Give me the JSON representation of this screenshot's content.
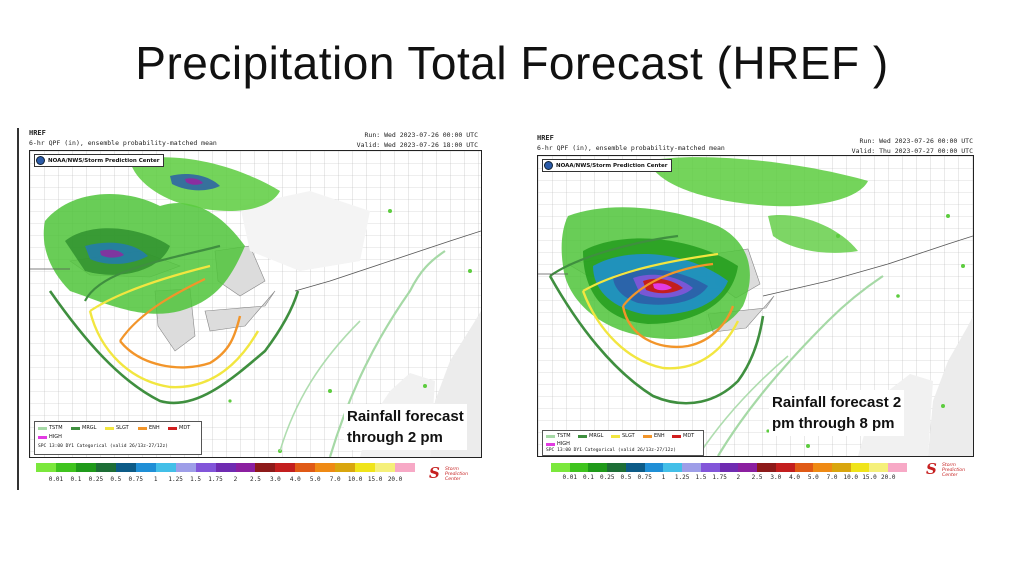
{
  "title": "Precipitation Total Forecast (HREF )",
  "panels": [
    {
      "model": "HREF",
      "product": "6-hr QPF (in), ensemble probability-matched mean",
      "run": "Run: Wed 2023-07-26 00:00 UTC",
      "valid": "Valid: Wed 2023-07-26 18:00 UTC",
      "agency": "NOAA/NWS/Storm Prediction Center",
      "annotation_line1": "Rainfall forecast",
      "annotation_line2": "through 2 pm",
      "outlook_caption": "SPC 13:00 DY1 Categorical (valid 26/13z-27/12z)"
    },
    {
      "model": "HREF",
      "product": "6-hr QPF (in), ensemble probability-matched mean",
      "run": "Run: Wed 2023-07-26 00:00 UTC",
      "valid": "Valid: Thu 2023-07-27 00:00 UTC",
      "agency": "NOAA/NWS/Storm Prediction Center",
      "annotation_line1": "Rainfall forecast 2",
      "annotation_line2": "pm through 8 pm",
      "outlook_caption": "SPC 13:00 DY1 Categorical (valid 26/13z-27/12z)"
    }
  ],
  "outlook_legend": [
    {
      "label": "TSTM",
      "color": "#a6d9a6"
    },
    {
      "label": "MRGL",
      "color": "#3f8f3f"
    },
    {
      "label": "SLGT",
      "color": "#f2e640"
    },
    {
      "label": "ENH",
      "color": "#f2952a"
    },
    {
      "label": "MDT",
      "color": "#d11f1f"
    },
    {
      "label": "HIGH",
      "color": "#e23be2"
    }
  ],
  "colorbar": {
    "labels": [
      "0.01",
      "0.1",
      "0.25",
      "0.5",
      "0.75",
      "1",
      "1.25",
      "1.5",
      "1.75",
      "2",
      "2.5",
      "3.0",
      "4.0",
      "5.0",
      "7.0",
      "10.0",
      "15.0",
      "20.0"
    ],
    "colors": [
      "#7be83c",
      "#3fc41e",
      "#1f9a1a",
      "#1d6e36",
      "#0c5b87",
      "#1f8fd6",
      "#43bfe8",
      "#9e9ee8",
      "#8255d9",
      "#6f2bb1",
      "#8b1fa0",
      "#8d1a1a",
      "#c31e1e",
      "#e05a16",
      "#ef8a14",
      "#d9a60e",
      "#f0e41a",
      "#f5f07a",
      "#f7a9c6"
    ]
  },
  "logo": {
    "mark": "S",
    "text1": "Storm",
    "text2": "Prediction",
    "text3": "Center"
  }
}
